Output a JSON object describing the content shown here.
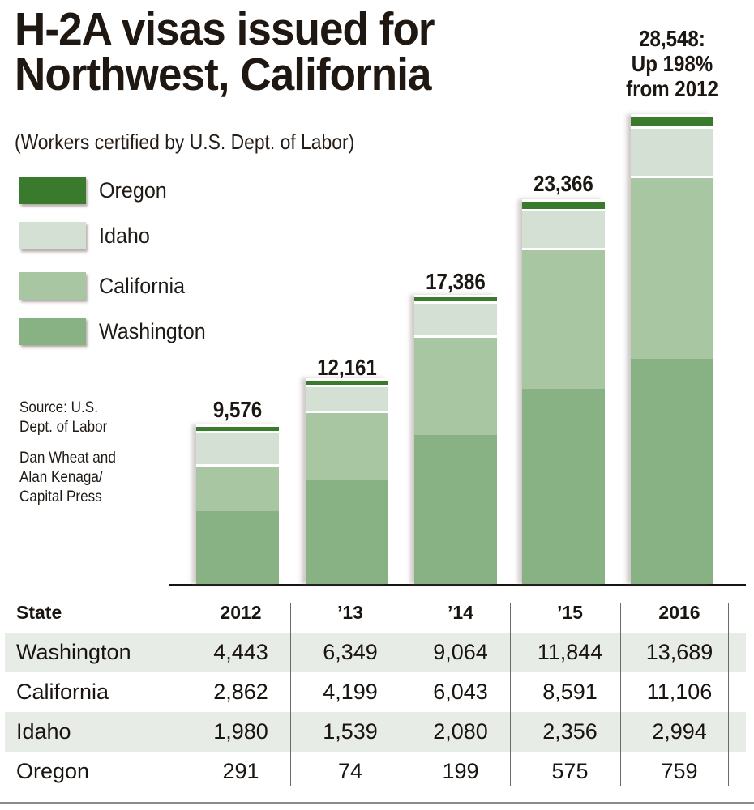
{
  "header": {
    "title_line1": "H-2A visas issued for",
    "title_line2": "Northwest, California",
    "subtitle": "(Workers certified by U.S. Dept. of Labor)"
  },
  "legend": [
    {
      "label": "Oregon",
      "color": "#3a7a2c"
    },
    {
      "label": "Idaho",
      "color": "#d3e0d3"
    },
    {
      "label": "California",
      "color": "#a9c6a3"
    },
    {
      "label": "Washington",
      "color": "#88b283"
    }
  ],
  "credits": {
    "source_line1": "Source: U.S.",
    "source_line2": "Dept. of Labor",
    "byline1": "Dan Wheat and",
    "byline2": "Alan Kenaga/",
    "byline3": "Capital Press"
  },
  "bar_labels": {
    "b0": "9,576",
    "b1": "12,161",
    "b2": "17,386",
    "b3": "23,366",
    "b4_line1": "28,548:",
    "b4_line2": "Up 198%",
    "b4_line3": "from 2012"
  },
  "table": {
    "header": [
      "State",
      "2012",
      "’13",
      "’14",
      "’15",
      "2016"
    ],
    "rows": [
      [
        "Washington",
        "4,443",
        "6,349",
        "9,064",
        "11,844",
        "13,689"
      ],
      [
        "California",
        "2,862",
        "4,199",
        "6,043",
        "8,591",
        "11,106"
      ],
      [
        "Idaho",
        "1,980",
        "1,539",
        "2,080",
        "2,356",
        "2,994"
      ],
      [
        "Oregon",
        "291",
        "74",
        "199",
        "575",
        "759"
      ]
    ]
  },
  "chart_data": {
    "type": "bar",
    "stacked": true,
    "title": "H-2A visas issued for Northwest, California",
    "subtitle": "(Workers certified by U.S. Dept. of Labor)",
    "xlabel": "",
    "ylabel": "",
    "categories": [
      "2012",
      "'13",
      "'14",
      "'15",
      "2016"
    ],
    "series": [
      {
        "name": "Washington",
        "color": "#88b283",
        "values": [
          4443,
          6349,
          9064,
          11844,
          13689
        ]
      },
      {
        "name": "California",
        "color": "#a9c6a3",
        "values": [
          2862,
          4199,
          6043,
          8591,
          11106
        ]
      },
      {
        "name": "Idaho",
        "color": "#d3e0d3",
        "values": [
          1980,
          1539,
          2080,
          2356,
          2994
        ]
      },
      {
        "name": "Oregon",
        "color": "#3a7a2c",
        "values": [
          291,
          74,
          199,
          575,
          759
        ]
      }
    ],
    "totals": [
      9576,
      12161,
      17386,
      23366,
      28548
    ],
    "annotations": [
      "28,548: Up 198% from 2012"
    ],
    "legend_position": "top-left",
    "grid": false,
    "ylim": [
      0,
      28548
    ],
    "source": "Source: U.S. Dept. of Labor",
    "credit": "Dan Wheat and Alan Kenaga/Capital Press"
  }
}
